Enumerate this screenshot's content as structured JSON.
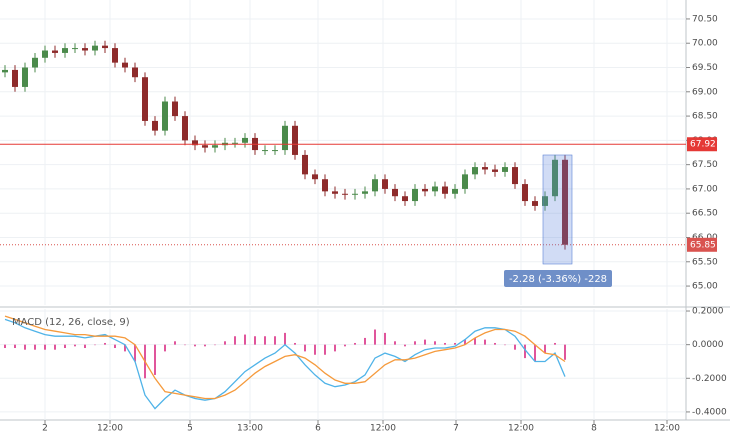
{
  "chart_data": [
    {
      "type": "candlestick",
      "xlim": [
        -0.5,
        68.1
      ],
      "ylim": [
        64.61,
        70.89
      ],
      "yticks": [
        {
          "value": 65,
          "label": "65.00"
        },
        {
          "value": 65.5,
          "label": "65.50"
        },
        {
          "value": 66,
          "label": "66.00"
        },
        {
          "value": 66.5,
          "label": "66.50"
        },
        {
          "value": 67,
          "label": "67.00"
        },
        {
          "value": 67.5,
          "label": "67.50"
        },
        {
          "value": 68,
          "label": "68.00"
        },
        {
          "value": 68.5,
          "label": "68.50"
        },
        {
          "value": 69,
          "label": "69.00"
        },
        {
          "value": 69.5,
          "label": "69.50"
        },
        {
          "value": 70,
          "label": "70.00"
        },
        {
          "value": 70.5,
          "label": "70.50"
        }
      ],
      "up_color": "#4b8a4b",
      "down_color": "#8e2b2b",
      "open": [
        69.4,
        69.45,
        69.1,
        69.5,
        69.7,
        69.85,
        69.8,
        69.9,
        69.9,
        69.85,
        69.95,
        69.9,
        69.6,
        69.5,
        69.3,
        68.4,
        68.2,
        68.8,
        68.5,
        68.0,
        67.9,
        67.85,
        67.9,
        67.95,
        67.95,
        68.05,
        67.8,
        67.8,
        67.8,
        68.3,
        67.7,
        67.3,
        67.2,
        66.95,
        66.9,
        66.88,
        66.9,
        66.95,
        67.2,
        67.0,
        66.85,
        66.75,
        67.0,
        66.95,
        67.05,
        66.9,
        67.0,
        67.3,
        67.45,
        67.4,
        67.35,
        67.45,
        67.1,
        66.75,
        66.65,
        66.85,
        67.6
      ],
      "high": [
        69.55,
        69.55,
        69.6,
        69.8,
        69.95,
        69.95,
        70.0,
        70.0,
        70.0,
        70.05,
        70.05,
        70.0,
        69.7,
        69.6,
        69.4,
        68.5,
        68.9,
        68.9,
        68.6,
        68.1,
        68.0,
        68.0,
        68.05,
        68.05,
        68.15,
        68.15,
        67.9,
        67.9,
        68.4,
        68.4,
        67.8,
        67.4,
        67.3,
        67.05,
        67.0,
        67.0,
        67.05,
        67.3,
        67.3,
        67.1,
        66.95,
        67.1,
        67.1,
        67.15,
        67.15,
        67.1,
        67.4,
        67.55,
        67.55,
        67.5,
        67.55,
        67.55,
        67.2,
        66.85,
        66.95,
        67.7,
        67.7
      ],
      "low": [
        69.3,
        69.0,
        69.0,
        69.4,
        69.6,
        69.7,
        69.7,
        69.8,
        69.75,
        69.75,
        69.8,
        69.5,
        69.4,
        69.2,
        68.3,
        68.1,
        68.1,
        68.4,
        67.9,
        67.8,
        67.75,
        67.75,
        67.8,
        67.85,
        67.85,
        67.7,
        67.7,
        67.7,
        67.7,
        67.6,
        67.2,
        67.1,
        66.85,
        66.8,
        66.78,
        66.78,
        66.8,
        66.85,
        66.9,
        66.75,
        66.65,
        66.65,
        66.85,
        66.85,
        66.8,
        66.8,
        66.9,
        67.2,
        67.3,
        67.25,
        67.25,
        67.0,
        66.65,
        66.55,
        66.55,
        66.75,
        65.75
      ],
      "close": [
        69.45,
        69.1,
        69.5,
        69.7,
        69.85,
        69.8,
        69.9,
        69.9,
        69.85,
        69.95,
        69.9,
        69.6,
        69.5,
        69.3,
        68.4,
        68.2,
        68.8,
        68.5,
        68.0,
        67.9,
        67.85,
        67.9,
        67.95,
        67.95,
        68.05,
        67.8,
        67.8,
        67.8,
        68.3,
        67.7,
        67.3,
        67.2,
        66.95,
        66.9,
        66.88,
        66.9,
        66.95,
        67.2,
        67.0,
        66.85,
        66.75,
        67.0,
        66.95,
        67.05,
        66.9,
        67.0,
        67.3,
        67.45,
        67.4,
        67.35,
        67.45,
        67.1,
        66.75,
        66.65,
        66.85,
        67.6,
        65.85
      ],
      "price_lines": [
        {
          "value": 67.92,
          "color": "#e53935",
          "style": "solid"
        },
        {
          "value": 65.85,
          "color": "#d9534f",
          "style": "dotted"
        }
      ],
      "annotation": "-2.28 (-3.36%) -228"
    },
    {
      "type": "macd",
      "title": "MACD (12, 26, close, 9)",
      "xlim": [
        -0.5,
        68.1
      ],
      "ylim": [
        -0.448,
        0.212
      ],
      "yticks": [
        {
          "value": -0.4,
          "label": "-0.4000"
        },
        {
          "value": -0.2,
          "label": "-0.2000"
        },
        {
          "value": 0,
          "label": "0.0000"
        },
        {
          "value": 0.2,
          "label": "0.2000"
        }
      ],
      "xticks": [
        {
          "value": 4,
          "label": "2"
        },
        {
          "value": 10.5,
          "label": "12:00"
        },
        {
          "value": 18.5,
          "label": "5"
        },
        {
          "value": 24.5,
          "label": "13:00"
        },
        {
          "value": 31.3,
          "label": "6"
        },
        {
          "value": 37.8,
          "label": "12:00"
        },
        {
          "value": 45.1,
          "label": "7"
        },
        {
          "value": 51.6,
          "label": "12:00"
        },
        {
          "value": 58.9,
          "label": "8"
        },
        {
          "value": 66.2,
          "label": "12:00"
        }
      ],
      "histogram": {
        "color": "#e0559b",
        "values": [
          -0.02,
          -0.02,
          -0.03,
          -0.03,
          -0.03,
          -0.03,
          -0.02,
          -0.01,
          -0.02,
          0.0,
          0.01,
          -0.02,
          -0.04,
          -0.1,
          -0.2,
          -0.18,
          -0.04,
          0.02,
          0.0,
          -0.01,
          -0.01,
          0.0,
          0.02,
          0.05,
          0.06,
          0.05,
          0.05,
          0.05,
          0.07,
          0.01,
          -0.04,
          -0.06,
          -0.06,
          -0.04,
          -0.01,
          0.01,
          0.04,
          0.09,
          0.07,
          0.02,
          -0.01,
          0.02,
          0.03,
          0.02,
          0.01,
          0.01,
          0.03,
          0.04,
          0.03,
          0.01,
          0.0,
          -0.03,
          -0.08,
          -0.1,
          -0.05,
          0.01,
          -0.09
        ]
      },
      "series": [
        {
          "color": "#4fb3e8",
          "values": [
            0.15,
            0.13,
            0.1,
            0.08,
            0.06,
            0.05,
            0.05,
            0.05,
            0.04,
            0.05,
            0.06,
            0.03,
            0.0,
            -0.1,
            -0.3,
            -0.38,
            -0.32,
            -0.27,
            -0.3,
            -0.32,
            -0.33,
            -0.32,
            -0.28,
            -0.22,
            -0.16,
            -0.12,
            -0.08,
            -0.05,
            0.0,
            -0.05,
            -0.12,
            -0.18,
            -0.23,
            -0.25,
            -0.24,
            -0.22,
            -0.18,
            -0.08,
            -0.05,
            -0.07,
            -0.1,
            -0.06,
            -0.03,
            -0.02,
            -0.02,
            -0.01,
            0.03,
            0.08,
            0.1,
            0.1,
            0.09,
            0.05,
            -0.03,
            -0.1,
            -0.1,
            -0.05,
            -0.19
          ]
        },
        {
          "color": "#f59a3c",
          "values": [
            0.17,
            0.15,
            0.13,
            0.11,
            0.09,
            0.08,
            0.07,
            0.06,
            0.06,
            0.05,
            0.05,
            0.05,
            0.04,
            0.0,
            -0.1,
            -0.2,
            -0.28,
            -0.29,
            -0.3,
            -0.31,
            -0.32,
            -0.32,
            -0.3,
            -0.27,
            -0.22,
            -0.17,
            -0.13,
            -0.1,
            -0.07,
            -0.06,
            -0.08,
            -0.12,
            -0.17,
            -0.21,
            -0.23,
            -0.23,
            -0.22,
            -0.17,
            -0.12,
            -0.09,
            -0.09,
            -0.08,
            -0.06,
            -0.04,
            -0.03,
            -0.02,
            0.0,
            0.04,
            0.07,
            0.09,
            0.09,
            0.08,
            0.05,
            0.0,
            -0.05,
            -0.06,
            -0.1
          ]
        }
      ]
    }
  ]
}
